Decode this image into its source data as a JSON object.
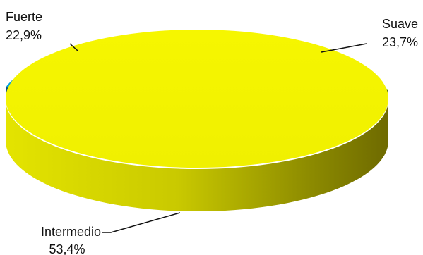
{
  "chart_data": {
    "type": "pie",
    "style": "3d",
    "title": "",
    "slices": [
      {
        "label": "Suave",
        "value": 23.7,
        "value_text": "23,7%",
        "color": "#8CC63F"
      },
      {
        "label": "Intermedio",
        "value": 53.4,
        "value_text": "53,4%",
        "color": "#F2F200"
      },
      {
        "label": "Fuerte",
        "value": 22.9,
        "value_text": "22,9%",
        "color": "#00A0E0"
      }
    ],
    "legend": "none",
    "labels": "outside-with-leader-lines"
  }
}
